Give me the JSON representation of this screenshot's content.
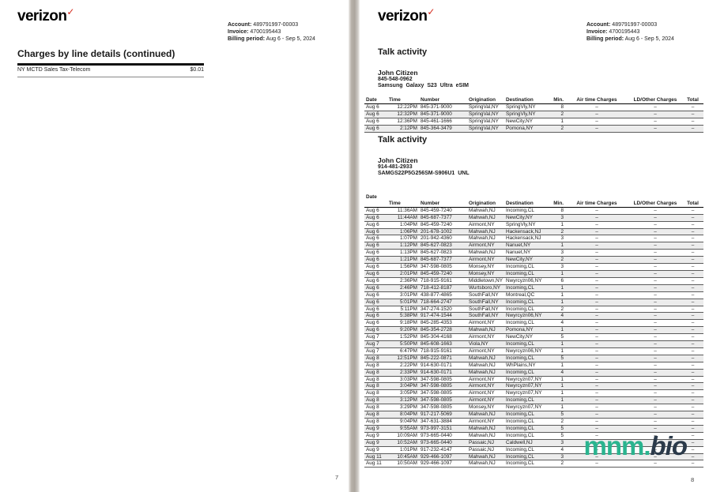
{
  "logo": {
    "text": "verizon",
    "check": "✓"
  },
  "account": {
    "account_label": "Account:",
    "account_number": "489791997-00003",
    "invoice_label": "Invoice:",
    "invoice_number": "4700195443",
    "billing_label": "Billing period:",
    "billing_period": "Aug 6 - Sep 5, 2024"
  },
  "left_page": {
    "heading": "Charges by line details (continued)",
    "line_item_label": "NY MCTD Sales Tax-Telecom",
    "line_item_amount": "$0.01",
    "page_number": "7"
  },
  "right_page": {
    "page_number": "8",
    "section1": {
      "heading": "Talk activity",
      "customer_name": "John Citizen",
      "customer_phone": "845-548-0962",
      "customer_device": "Samsung Galaxy S23 Ultra eSIM",
      "table": {
        "headers": [
          "Date",
          "Time",
          "Number",
          "Origination",
          "Destination",
          "Min.",
          "Air time Charges",
          "LD/Other Charges",
          "Total"
        ],
        "rows": [
          [
            "Aug 6",
            "12:22PM",
            "845-371-9000",
            "SpringVal,NY",
            "SpringVly,NY",
            "8",
            "–",
            "–",
            "–"
          ],
          [
            "Aug 6",
            "12:32PM",
            "845-371-9000",
            "SpringVal,NY",
            "SpringVly,NY",
            "2",
            "–",
            "–",
            "–"
          ],
          [
            "Aug 6",
            "12:36PM",
            "845-461-1666",
            "SpringVal,NY",
            "NewCity,NY",
            "1",
            "–",
            "–",
            "–"
          ],
          [
            "Aug 6",
            "2:12PM",
            "845-364-3479",
            "SpringVal,NY",
            "Pomona,NY",
            "2",
            "–",
            "–",
            "–"
          ]
        ]
      }
    },
    "section2": {
      "heading": "Talk activity",
      "customer_name": "John Citizen",
      "customer_phone": "914-481-2933",
      "customer_device": "SAMGS22P5G256SM-S906U1 UNL",
      "table": {
        "headers": [
          "Date",
          "Time",
          "Number",
          "Origination",
          "Destination",
          "Min.",
          "Air time Charges",
          "LD/Other Charges",
          "Total"
        ],
        "rows": [
          [
            "Aug 6",
            "11:36AM",
            "845-459-7240",
            "Mahwah,NJ",
            "Incoming,CL",
            "8",
            "–",
            "–",
            "–"
          ],
          [
            "Aug 6",
            "11:44AM",
            "845-687-7377",
            "Mahwah,NJ",
            "NewCity,NY",
            "3",
            "–",
            "–",
            "–"
          ],
          [
            "Aug 6",
            "1:04PM",
            "845-459-7240",
            "Airmont,NY",
            "SpringVly,NY",
            "1",
            "–",
            "–",
            "–"
          ],
          [
            "Aug 6",
            "1:06PM",
            "201-678-1002",
            "Mahwah,NJ",
            "Hackensack,NJ",
            "2",
            "–",
            "–",
            "–"
          ],
          [
            "Aug 6",
            "1:07PM",
            "201-942-4360",
            "Mahwah,NJ",
            "Hackensack,NJ",
            "3",
            "–",
            "–",
            "–"
          ],
          [
            "Aug 6",
            "1:12PM",
            "845-627-0823",
            "Airmont,NY",
            "Nanuet,NY",
            "1",
            "–",
            "–",
            "–"
          ],
          [
            "Aug 6",
            "1:13PM",
            "845-627-0823",
            "Mahwah,NJ",
            "Nanuet,NY",
            "3",
            "–",
            "–",
            "–"
          ],
          [
            "Aug 6",
            "1:21PM",
            "845-687-7377",
            "Airmont,NY",
            "NewCity,NY",
            "2",
            "–",
            "–",
            "–"
          ],
          [
            "Aug 6",
            "1:56PM",
            "347-598-0805",
            "Monsey,NY",
            "Incoming,CL",
            "3",
            "–",
            "–",
            "–"
          ],
          [
            "Aug 6",
            "2:01PM",
            "845-459-7240",
            "Monsey,NY",
            "Incoming,CL",
            "1",
            "–",
            "–",
            "–"
          ],
          [
            "Aug 6",
            "2:36PM",
            "718-915-9161",
            "Middletown,NY",
            "Nwyrcyzn06,NY",
            "6",
            "–",
            "–",
            "–"
          ],
          [
            "Aug 6",
            "2:46PM",
            "718-412-8187",
            "Wurtsboro,NY",
            "Incoming,CL",
            "1",
            "–",
            "–",
            "–"
          ],
          [
            "Aug 6",
            "3:01PM",
            "438-877-4865",
            "SouthFall,NY",
            "Montreal,QC",
            "1",
            "–",
            "–",
            "–"
          ],
          [
            "Aug 6",
            "5:01PM",
            "718-664-2747",
            "SouthFall,NY",
            "Incoming,CL",
            "1",
            "–",
            "–",
            "–"
          ],
          [
            "Aug 6",
            "5:11PM",
            "347-274-1520",
            "SouthFall,NY",
            "Incoming,CL",
            "2",
            "–",
            "–",
            "–"
          ],
          [
            "Aug 6",
            "5:38PM",
            "917-474-1544",
            "SouthFall,NY",
            "Nwyrcyzn06,NY",
            "4",
            "–",
            "–",
            "–"
          ],
          [
            "Aug 6",
            "9:18PM",
            "845-285-4353",
            "Airmont,NY",
            "Incoming,CL",
            "4",
            "–",
            "–",
            "–"
          ],
          [
            "Aug 6",
            "9:20PM",
            "845-354-2728",
            "Mahwah,NJ",
            "Pomona,NY",
            "1",
            "–",
            "–",
            "–"
          ],
          [
            "Aug 7",
            "1:52PM",
            "845-304-4168",
            "Airmont,NY",
            "NewCity,NY",
            "5",
            "–",
            "–",
            "–"
          ],
          [
            "Aug 7",
            "5:50PM",
            "845-608-1663",
            "Viola,NY",
            "Incoming,CL",
            "1",
            "–",
            "–",
            "–"
          ],
          [
            "Aug 7",
            "6:47PM",
            "718-915-9161",
            "Airmont,NY",
            "Nwyrcyzn06,NY",
            "1",
            "–",
            "–",
            "–"
          ],
          [
            "Aug 8",
            "12:51PM",
            "845-222-0871",
            "Mahwah,NJ",
            "Incoming,CL",
            "5",
            "–",
            "–",
            "–"
          ],
          [
            "Aug 8",
            "2:22PM",
            "914-630-0171",
            "Mahwah,NJ",
            "WhPlains,NY",
            "1",
            "–",
            "–",
            "–"
          ],
          [
            "Aug 8",
            "2:33PM",
            "914-630-0171",
            "Mahwah,NJ",
            "Incoming,CL",
            "4",
            "–",
            "–",
            "–"
          ],
          [
            "Aug 8",
            "3:03PM",
            "347-598-0805",
            "Airmont,NY",
            "Nwyrcyzn07,NY",
            "1",
            "–",
            "–",
            "–"
          ],
          [
            "Aug 8",
            "3:04PM",
            "347-598-0805",
            "Airmont,NY",
            "Nwyrcyzn07,NY",
            "1",
            "–",
            "–",
            "–"
          ],
          [
            "Aug 8",
            "3:05PM",
            "347-598-0805",
            "Airmont,NY",
            "Nwyrcyzn07,NY",
            "1",
            "–",
            "–",
            "–"
          ],
          [
            "Aug 8",
            "3:12PM",
            "347-598-0805",
            "Airmont,NY",
            "Incoming,CL",
            "1",
            "–",
            "–",
            "–"
          ],
          [
            "Aug 8",
            "3:29PM",
            "347-598-0805",
            "Monsey,NY",
            "Nwyrcyzn07,NY",
            "1",
            "–",
            "–",
            "–"
          ],
          [
            "Aug 8",
            "8:04PM",
            "917-217-5069",
            "Mahwah,NJ",
            "Incoming,CL",
            "5",
            "–",
            "–",
            "–"
          ],
          [
            "Aug 8",
            "9:04PM",
            "347-631-3884",
            "Airmont,NY",
            "Incoming,CL",
            "2",
            "–",
            "–",
            "–"
          ],
          [
            "Aug 9",
            "9:55AM",
            "973-997-3151",
            "Mahwah,NJ",
            "Incoming,CL",
            "5",
            "–",
            "–",
            "–"
          ],
          [
            "Aug 9",
            "10:09AM",
            "973-665-0440",
            "Mahwah,NJ",
            "Incoming,CL",
            "5",
            "–",
            "–",
            "–"
          ],
          [
            "Aug 9",
            "10:52AM",
            "973-665-0440",
            "Passaic,NJ",
            "Caldwell,NJ",
            "3",
            "–",
            "–",
            "–"
          ],
          [
            "Aug 9",
            "1:01PM",
            "917-232-4147",
            "Passaic,NJ",
            "Incoming,CL",
            "4",
            "–",
            "–",
            "–"
          ],
          [
            "Aug 11",
            "10:45AM",
            "929-466-1097",
            "Mahwah,NJ",
            "Incoming,CL",
            "3",
            "–",
            "–",
            "–"
          ],
          [
            "Aug 11",
            "10:50AM",
            "929-466-1097",
            "Mahwah,NJ",
            "Incoming,CL",
            "2",
            "–",
            "–",
            "–"
          ]
        ]
      }
    }
  },
  "watermark": {
    "prefix": "mnm.",
    "suffix": "bio",
    "prefix_color": "#2ab48f",
    "suffix_color": "#2b3a4a"
  },
  "colors": {
    "verizon_red": "#d52b1e"
  }
}
